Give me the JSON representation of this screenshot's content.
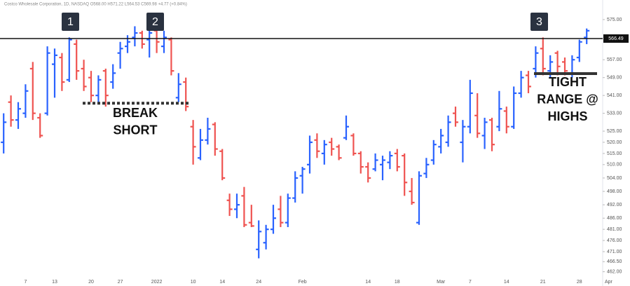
{
  "chart_data": {
    "type": "ohlc",
    "title": "Costco Wholesale Corporation, 1D, NASDAQ  O568.00  H571.22  L564.53  C569.98  +4.77 (+0.84%)",
    "categories": [
      null,
      null,
      null,
      "7",
      null,
      null,
      null,
      "13",
      null,
      null,
      null,
      null,
      "20",
      null,
      null,
      null,
      "27",
      null,
      null,
      null,
      null,
      "2022",
      null,
      null,
      null,
      null,
      "10",
      null,
      null,
      null,
      "14",
      null,
      null,
      null,
      null,
      "24",
      null,
      null,
      null,
      null,
      null,
      "Feb",
      null,
      null,
      null,
      null,
      null,
      null,
      null,
      null,
      "14",
      null,
      null,
      null,
      "18",
      null,
      null,
      null,
      null,
      null,
      "Mar",
      null,
      null,
      null,
      "7",
      null,
      null,
      null,
      null,
      "14",
      null,
      null,
      null,
      null,
      "21",
      null,
      null,
      null,
      null,
      "28",
      null,
      null,
      null,
      "Apr"
    ],
    "open": [
      520,
      538,
      530,
      533,
      553,
      531,
      533,
      555,
      558,
      548,
      564,
      553,
      549,
      541,
      552,
      547,
      560,
      563,
      567,
      569,
      566,
      570,
      563,
      566,
      540,
      547,
      527,
      513,
      521,
      528,
      516,
      494,
      490,
      496,
      484,
      472,
      475,
      481,
      490,
      484,
      495,
      505,
      510,
      521,
      515,
      520,
      518,
      522,
      523,
      515,
      509,
      508,
      510,
      511,
      515,
      514,
      498,
      484,
      506,
      512,
      518,
      520,
      533,
      520,
      527,
      532,
      523,
      530,
      527,
      534,
      527,
      542,
      550,
      553,
      562,
      552,
      560,
      556,
      551,
      558,
      567,
      null,
      null,
      null
    ],
    "high": [
      533,
      541,
      538,
      546,
      556,
      533,
      563,
      562,
      560,
      567,
      566,
      557,
      552,
      550,
      553,
      555,
      565,
      568,
      572,
      570,
      570,
      571,
      570,
      567,
      551,
      549,
      530,
      526,
      531,
      529,
      517,
      497,
      497,
      500,
      492,
      485,
      483,
      492,
      496,
      497,
      507,
      509,
      523,
      524,
      521,
      522,
      519,
      532,
      524,
      516,
      511,
      515,
      514,
      516,
      517,
      515,
      504,
      507,
      513,
      521,
      526,
      532,
      536,
      530,
      548,
      542,
      531,
      531,
      543,
      536,
      545,
      552,
      552,
      563,
      567,
      559,
      561,
      558,
      559,
      566,
      571,
      null,
      null,
      null
    ],
    "low": [
      515,
      527,
      526,
      531,
      530,
      522,
      532,
      540,
      543,
      547,
      548,
      543,
      538,
      538,
      536,
      544,
      553,
      560,
      563,
      562,
      558,
      560,
      560,
      550,
      538,
      534,
      510,
      512,
      519,
      514,
      503,
      487,
      486,
      482,
      482,
      468,
      472,
      479,
      482,
      482,
      493,
      497,
      506,
      513,
      510,
      514,
      512,
      521,
      514,
      506,
      502,
      507,
      503,
      508,
      507,
      496,
      492,
      483,
      504,
      510,
      515,
      518,
      527,
      511,
      524,
      522,
      517,
      516,
      525,
      524,
      526,
      540,
      542,
      549,
      550,
      549,
      550,
      550,
      549,
      556,
      564,
      null,
      null,
      null
    ],
    "close": [
      529,
      530,
      535,
      543,
      533,
      523,
      560,
      559,
      547,
      566,
      552,
      545,
      541,
      548,
      541,
      551,
      562,
      565,
      569,
      564,
      569,
      565,
      567,
      552,
      546,
      536,
      518,
      521,
      526,
      517,
      504,
      490,
      492,
      483,
      482.5,
      480,
      481,
      486,
      484,
      495,
      504,
      508,
      520,
      516,
      519,
      517,
      513,
      527,
      515,
      509,
      504,
      512,
      512,
      514,
      509,
      502,
      493,
      505,
      510,
      519,
      523,
      529,
      529,
      527,
      542,
      524,
      529,
      519,
      535,
      527,
      542,
      549,
      545,
      560,
      553,
      556,
      554,
      552,
      557,
      565,
      570,
      null,
      null,
      null
    ],
    "up_color": "#2962ff",
    "down_color": "#ef5350",
    "ylim": [
      460,
      580
    ],
    "yticks": [
      {
        "value": 575,
        "label": "575.00"
      },
      {
        "value": 557,
        "label": "557.00"
      },
      {
        "value": 549,
        "label": "549.00"
      },
      {
        "value": 541,
        "label": "541.00"
      },
      {
        "value": 533,
        "label": "533.00"
      },
      {
        "value": 525,
        "label": "525.00"
      },
      {
        "value": 520,
        "label": "520.00"
      },
      {
        "value": 515,
        "label": "515.00"
      },
      {
        "value": 510,
        "label": "510.00"
      },
      {
        "value": 504,
        "label": "504.00"
      },
      {
        "value": 498,
        "label": "498.00"
      },
      {
        "value": 492,
        "label": "492.00"
      },
      {
        "value": 486,
        "label": "486.00"
      },
      {
        "value": 481,
        "label": "481.00"
      },
      {
        "value": 476,
        "label": "476.00"
      },
      {
        "value": 471,
        "label": "471.00"
      },
      {
        "value": 466.5,
        "label": "466.50"
      },
      {
        "value": 462,
        "label": "462.00"
      }
    ],
    "grid": false,
    "resistance": {
      "value": 566.49,
      "label": "566.49"
    },
    "break_level": 537.5,
    "range_low": 550.8,
    "markers": [
      "1",
      "2",
      "3"
    ],
    "annotations": [
      [
        "BREAK",
        "SHORT"
      ],
      [
        "TIGHT",
        "RANGE @",
        "HIGHS"
      ]
    ]
  }
}
